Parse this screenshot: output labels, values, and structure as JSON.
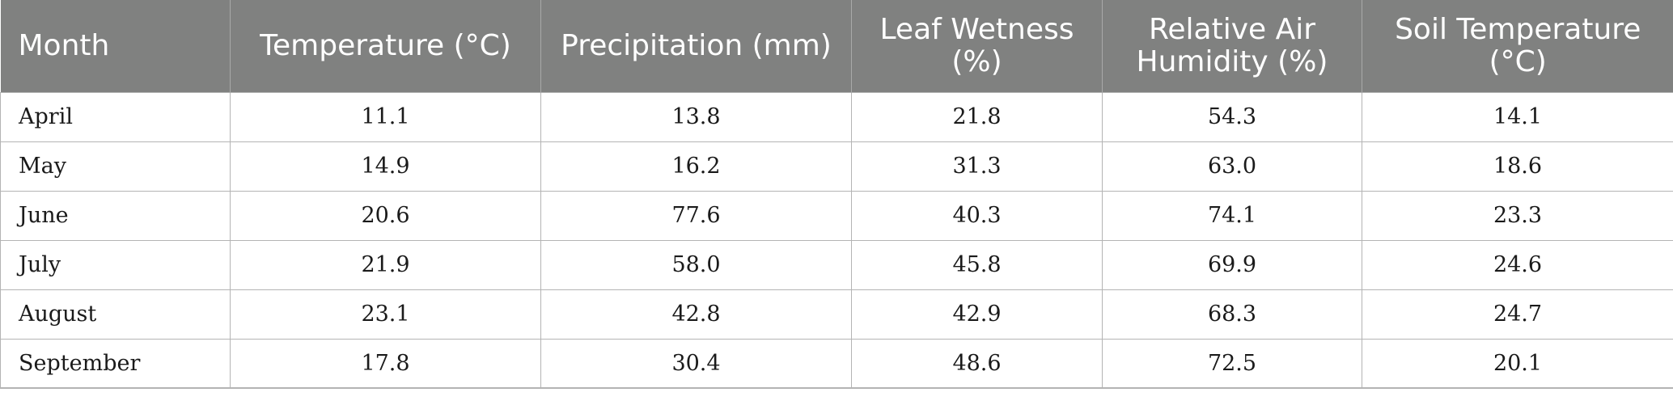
{
  "table": {
    "headers": [
      "Month",
      "Temperature (°C)",
      "Precipitation (mm)",
      "Leaf Wetness (%)",
      "Relative Air Humidity (%)",
      "Soil Temperature (°C)"
    ],
    "rows": [
      [
        "April",
        "11.1",
        "13.8",
        "21.8",
        "54.3",
        "14.1"
      ],
      [
        "May",
        "14.9",
        "16.2",
        "31.3",
        "63.0",
        "18.6"
      ],
      [
        "June",
        "20.6",
        "77.6",
        "40.3",
        "74.1",
        "23.3"
      ],
      [
        "July",
        "21.9",
        "58.0",
        "45.8",
        "69.9",
        "24.6"
      ],
      [
        "August",
        "23.1",
        "42.8",
        "42.9",
        "68.3",
        "24.7"
      ],
      [
        "September",
        "17.8",
        "30.4",
        "48.6",
        "72.5",
        "20.1"
      ]
    ]
  }
}
